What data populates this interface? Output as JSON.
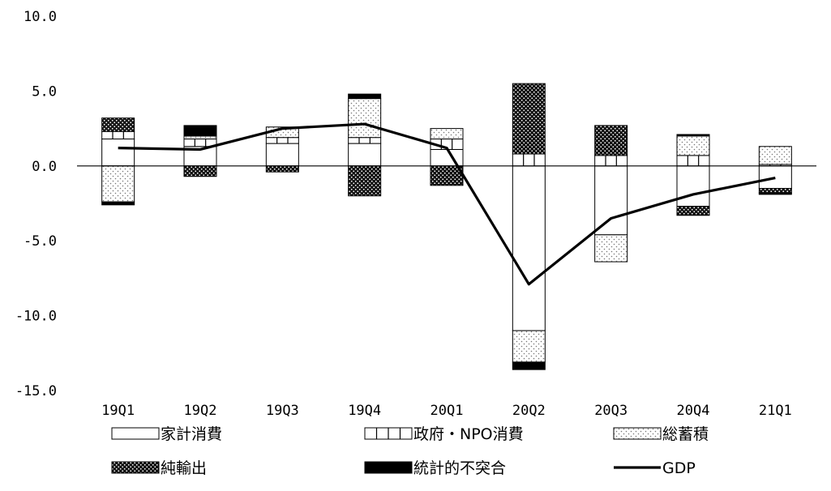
{
  "chart_data": {
    "type": "bar",
    "stacked": true,
    "categories": [
      "19Q1",
      "19Q2",
      "19Q3",
      "19Q4",
      "20Q1",
      "20Q2",
      "20Q3",
      "20Q4",
      "21Q1"
    ],
    "ylim": [
      -15,
      10
    ],
    "yticks": [
      "10.0",
      "5.0",
      "0.0",
      "-5.0",
      "-10.0",
      "-15.0"
    ],
    "ytick_values": [
      10,
      5,
      0,
      -5,
      -10,
      -15
    ],
    "grid": false,
    "legend_position": "bottom",
    "series": [
      {
        "name": "家計消費",
        "pattern": "white",
        "values": [
          1.8,
          1.3,
          1.5,
          1.5,
          1.1,
          -11.0,
          -4.6,
          -2.7,
          -1.5
        ]
      },
      {
        "name": "政府・NPO消費",
        "pattern": "brick",
        "values": [
          0.5,
          0.5,
          0.4,
          0.4,
          0.7,
          0.8,
          0.7,
          0.7,
          0.1
        ]
      },
      {
        "name": "総蓄積",
        "pattern": "light-dots",
        "values": [
          -2.4,
          0.2,
          0.7,
          2.6,
          0.7,
          -2.1,
          -1.8,
          1.3,
          1.2
        ]
      },
      {
        "name": "純輸出",
        "pattern": "dark-dots",
        "values": [
          0.9,
          -0.7,
          -0.4,
          -2.0,
          -1.3,
          4.7,
          2.0,
          -0.6,
          -0.3
        ]
      },
      {
        "name": "統計的不突合",
        "pattern": "black",
        "values": [
          -0.2,
          0.7,
          0.0,
          0.3,
          0.0,
          -0.5,
          0.0,
          0.1,
          -0.1
        ]
      }
    ],
    "line": {
      "name": "GDP",
      "values": [
        1.2,
        1.1,
        2.5,
        2.8,
        1.2,
        -7.9,
        -3.5,
        -1.9,
        -0.8
      ]
    }
  }
}
